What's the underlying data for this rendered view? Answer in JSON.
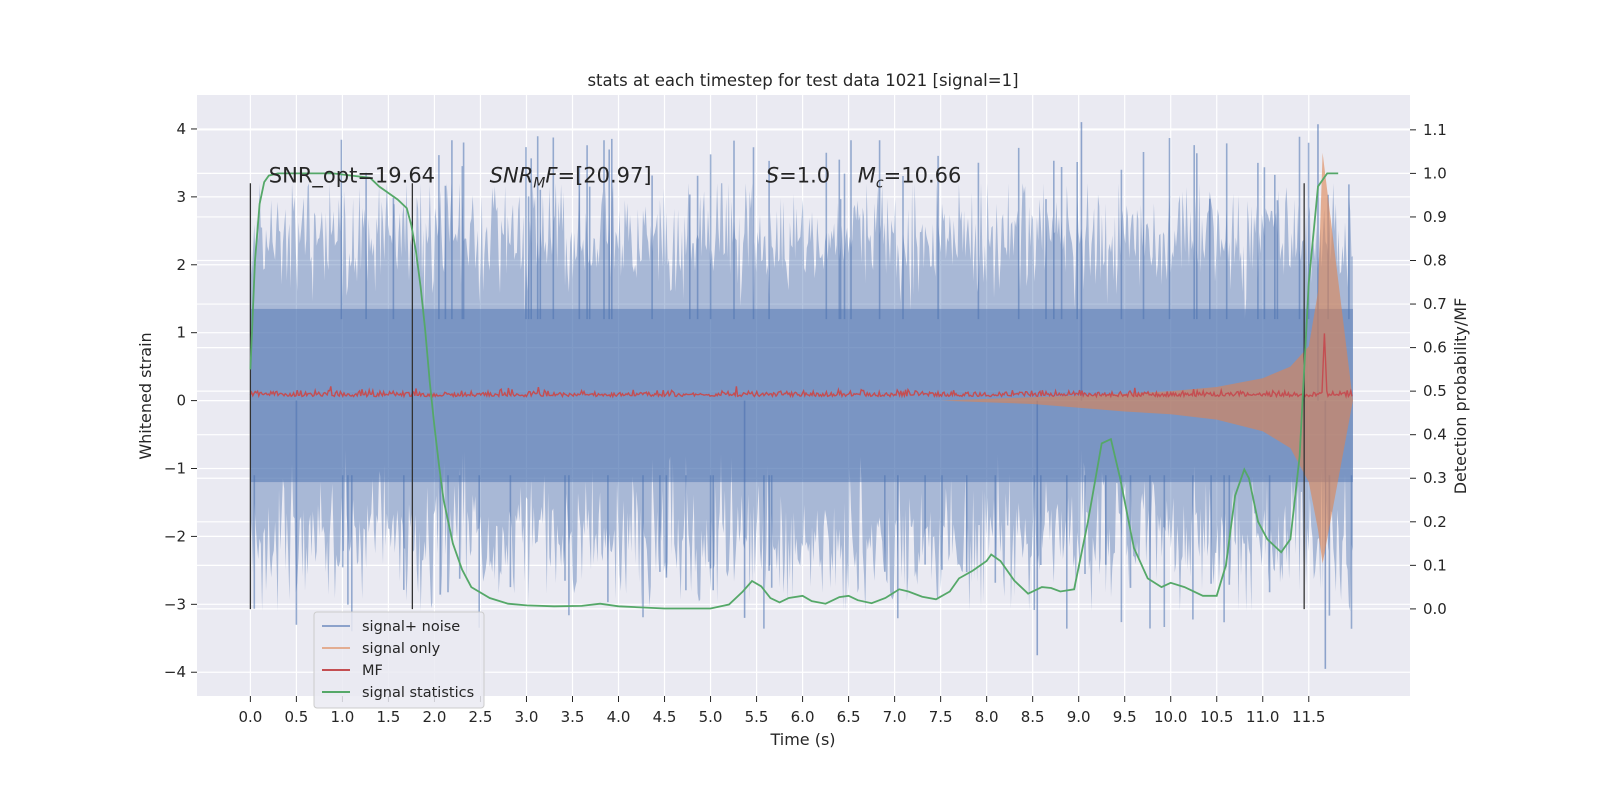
{
  "chart_data": {
    "type": "line",
    "title": "stats at each timestep for test data 1021 [signal=1]",
    "xlabel": "Time (s)",
    "ylabel_left": "Whitened strain",
    "ylabel_right": "Detection probability/MF",
    "x_ticks": [
      0.0,
      0.5,
      1.0,
      1.5,
      2.0,
      2.5,
      3.0,
      3.5,
      4.0,
      4.5,
      5.0,
      5.5,
      6.0,
      6.5,
      7.0,
      7.5,
      8.0,
      8.5,
      9.0,
      9.5,
      10.0,
      10.5,
      11.0,
      11.5
    ],
    "x_tick_labels": [
      "0.0",
      "0.5",
      "1.0",
      "1.5",
      "2.0",
      "2.5",
      "3.0",
      "3.5",
      "4.0",
      "4.5",
      "5.0",
      "5.5",
      "6.0",
      "6.5",
      "7.0",
      "7.5",
      "8.0",
      "8.5",
      "9.0",
      "9.5",
      "10.0",
      "10.5",
      "11.0",
      "11.5"
    ],
    "xlim": [
      -0.58,
      12.6
    ],
    "y_left_ticks": [
      -4,
      -3,
      -2,
      -1,
      0,
      1,
      2,
      3,
      4
    ],
    "y_left_tick_labels": [
      "−4",
      "−3",
      "−2",
      "−1",
      "0",
      "1",
      "2",
      "3",
      "4"
    ],
    "ylim_left": [
      -4.35,
      4.5
    ],
    "y_right_ticks": [
      0.0,
      0.1,
      0.2,
      0.3,
      0.4,
      0.5,
      0.6,
      0.7,
      0.8,
      0.9,
      1.0,
      1.1
    ],
    "y_right_tick_labels": [
      "0.0",
      "0.1",
      "0.2",
      "0.3",
      "0.4",
      "0.5",
      "0.6",
      "0.7",
      "0.8",
      "0.9",
      "1.0",
      "1.1"
    ],
    "ylim_right": [
      -0.2,
      1.18
    ],
    "grid": true,
    "legend_position": "lower-left",
    "annotations": [
      {
        "parts": [
          {
            "t": "SNR_opt=19.64",
            "style": "normal"
          }
        ],
        "x": 0.2,
        "y": 3.2
      },
      {
        "parts": [
          {
            "t": "SNR",
            "style": "italic"
          },
          {
            "t": "M",
            "style": "italic-sub"
          },
          {
            "t": "F",
            "style": "italic"
          },
          {
            "t": "=[20.97]",
            "style": "normal"
          }
        ],
        "x": 2.6,
        "y": 3.2
      },
      {
        "parts": [
          {
            "t": "S",
            "style": "italic"
          },
          {
            "t": "=1.0",
            "style": "normal"
          }
        ],
        "x": 5.6,
        "y": 3.2
      },
      {
        "parts": [
          {
            "t": "M",
            "style": "italic"
          },
          {
            "t": "c",
            "style": "italic-sub"
          },
          {
            "t": "=10.66",
            "style": "normal"
          }
        ],
        "x": 6.6,
        "y": 3.2
      }
    ],
    "vertical_lines": [
      {
        "x": 0.0,
        "y_from": -3.07,
        "y_to": 3.2
      },
      {
        "x": 1.76,
        "y_from": -3.07,
        "y_to": 3.2
      },
      {
        "x": 11.45,
        "y_from": -3.07,
        "y_to": 3.2
      }
    ],
    "series": [
      {
        "name": "signal+ noise",
        "axis": "left",
        "kind": "noise_band",
        "color": "#4c72b0",
        "x_range": [
          0.0,
          11.98
        ],
        "core_band": [
          -1.2,
          1.35
        ],
        "typical_extremes": [
          -2.0,
          2.4
        ],
        "max": 4.1,
        "min": -3.95
      },
      {
        "name": "signal only",
        "axis": "left",
        "kind": "chirp",
        "color": "#dd8452",
        "envelope": {
          "x": [
            7.5,
            8.5,
            9.5,
            10.0,
            10.5,
            11.0,
            11.3,
            11.5,
            11.6,
            11.65,
            11.98
          ],
          "upper": [
            0.0,
            0.05,
            0.1,
            0.14,
            0.2,
            0.33,
            0.5,
            0.8,
            1.6,
            3.65,
            0.0
          ],
          "lower": [
            0.0,
            -0.05,
            -0.16,
            -0.2,
            -0.28,
            -0.45,
            -0.7,
            -1.2,
            -1.9,
            -2.4,
            0.0
          ]
        }
      },
      {
        "name": "MF",
        "axis": "left",
        "kind": "matched_filter",
        "color": "#c44e52",
        "baseline": 0.06,
        "noise": 0.06,
        "peak": {
          "x": 11.67,
          "y": 1.0
        }
      },
      {
        "name": "signal statistics",
        "axis": "right",
        "kind": "line",
        "color": "#55a868",
        "x": [
          0.0,
          0.05,
          0.1,
          0.15,
          0.2,
          0.3,
          0.5,
          0.7,
          0.9,
          1.1,
          1.3,
          1.4,
          1.5,
          1.6,
          1.7,
          1.75,
          1.8,
          1.85,
          1.9,
          1.95,
          2.0,
          2.05,
          2.1,
          2.2,
          2.3,
          2.4,
          2.6,
          2.8,
          3.0,
          3.3,
          3.6,
          3.8,
          4.0,
          4.5,
          5.0,
          5.2,
          5.35,
          5.45,
          5.55,
          5.65,
          5.75,
          5.85,
          6.0,
          6.1,
          6.25,
          6.4,
          6.5,
          6.6,
          6.75,
          6.9,
          7.05,
          7.15,
          7.3,
          7.45,
          7.6,
          7.7,
          7.85,
          8.0,
          8.05,
          8.15,
          8.3,
          8.45,
          8.6,
          8.7,
          8.8,
          8.95,
          9.1,
          9.25,
          9.35,
          9.45,
          9.6,
          9.75,
          9.9,
          10.0,
          10.15,
          10.35,
          10.5,
          10.6,
          10.7,
          10.8,
          10.85,
          10.95,
          11.05,
          11.2,
          11.3,
          11.4,
          11.5,
          11.6,
          11.7,
          11.82
        ],
        "y": [
          0.55,
          0.8,
          0.93,
          0.98,
          0.995,
          1.0,
          1.0,
          1.0,
          1.0,
          0.995,
          0.99,
          0.97,
          0.955,
          0.94,
          0.92,
          0.88,
          0.82,
          0.74,
          0.64,
          0.52,
          0.42,
          0.33,
          0.25,
          0.15,
          0.09,
          0.05,
          0.025,
          0.012,
          0.008,
          0.006,
          0.007,
          0.012,
          0.006,
          0.001,
          0.001,
          0.01,
          0.04,
          0.064,
          0.052,
          0.025,
          0.015,
          0.025,
          0.03,
          0.018,
          0.012,
          0.027,
          0.03,
          0.02,
          0.013,
          0.025,
          0.045,
          0.04,
          0.028,
          0.022,
          0.04,
          0.07,
          0.088,
          0.11,
          0.125,
          0.11,
          0.065,
          0.035,
          0.05,
          0.048,
          0.04,
          0.045,
          0.2,
          0.38,
          0.39,
          0.3,
          0.14,
          0.07,
          0.05,
          0.06,
          0.05,
          0.03,
          0.03,
          0.1,
          0.26,
          0.32,
          0.3,
          0.2,
          0.16,
          0.13,
          0.16,
          0.35,
          0.75,
          0.97,
          1.0,
          1.0
        ]
      }
    ]
  }
}
